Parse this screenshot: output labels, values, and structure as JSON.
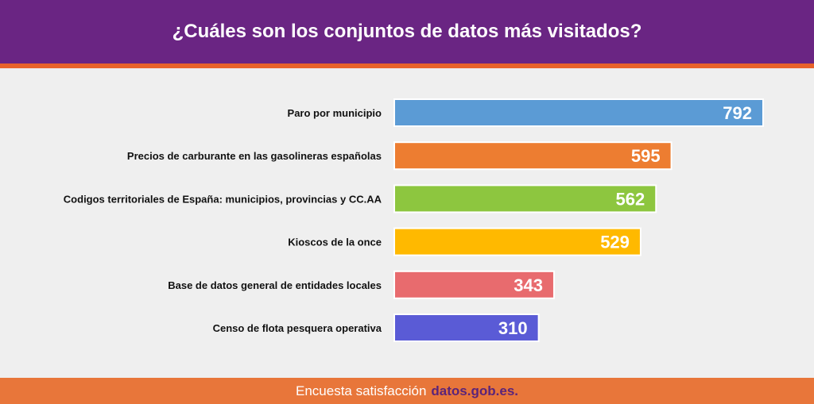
{
  "header": {
    "title": "¿Cuáles son los conjuntos de datos más visitados?"
  },
  "footer": {
    "text": "Encuesta satisfacción",
    "brand": "datos.gob.es."
  },
  "colors": {
    "header": "#6a2583",
    "accent": "#e8622a",
    "footer": "#e8763a"
  },
  "chart_data": {
    "type": "bar",
    "orientation": "horizontal",
    "categories": [
      "Paro por municipio",
      "Precios de carburante en las gasolineras españolas",
      "Codigos territoriales de España: municipios, provincias y CC.AA",
      "Kioscos de la once",
      "Base de datos general de entidades locales",
      "Censo de flota pesquera operativa"
    ],
    "values": [
      792,
      595,
      562,
      529,
      343,
      310
    ],
    "colors": [
      "#5b9bd5",
      "#ed7d31",
      "#8dc63f",
      "#ffb900",
      "#e86b6e",
      "#5a5bd6"
    ],
    "title": "¿Cuáles son los conjuntos de datos más visitados?",
    "xlabel": "",
    "ylabel": "",
    "grid": false,
    "legend": "none"
  }
}
